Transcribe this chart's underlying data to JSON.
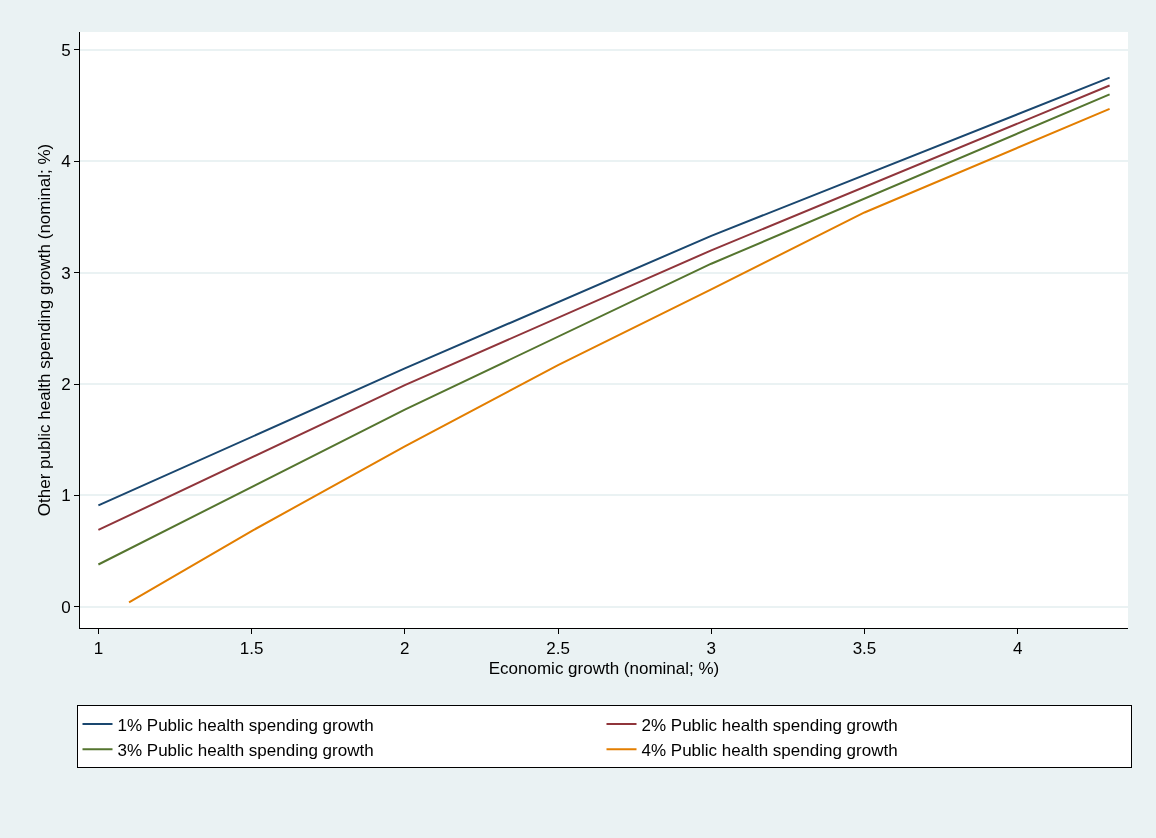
{
  "chart_data": {
    "type": "line",
    "xlabel": "Economic growth (nominal; %)",
    "ylabel": "Other public health spending growth (nominal; %)",
    "xlim": [
      0.94,
      4.36
    ],
    "xticks": [
      1,
      1.5,
      2,
      2.5,
      3,
      3.5,
      4
    ],
    "ylim": [
      -0.19,
      5.16
    ],
    "yticks": [
      0,
      1,
      2,
      3,
      4,
      5
    ],
    "grid": "y",
    "legend": "bottom",
    "marker": "none",
    "line_style": "solid",
    "series": [
      {
        "name": "1% Public health spending growth",
        "color": "#1a476f",
        "x": [
          1,
          2,
          3,
          4.3
        ],
        "values": [
          0.91,
          2.14,
          3.33,
          4.75
        ]
      },
      {
        "name": "2% Public health spending growth",
        "color": "#90353b",
        "x": [
          1,
          2,
          3,
          4.3
        ],
        "values": [
          0.69,
          1.99,
          3.2,
          4.68
        ]
      },
      {
        "name": "3% Public health spending growth",
        "color": "#55752f",
        "x": [
          1,
          2,
          3,
          4.3
        ],
        "values": [
          0.38,
          1.77,
          3.08,
          4.6
        ]
      },
      {
        "name": "4% Public health spending growth",
        "color": "#e37e00",
        "x": [
          1.1,
          1.5,
          2,
          2.5,
          3,
          3.5,
          4.3
        ],
        "values": [
          0.04,
          0.68,
          1.44,
          2.17,
          2.85,
          3.54,
          4.47
        ]
      }
    ]
  }
}
